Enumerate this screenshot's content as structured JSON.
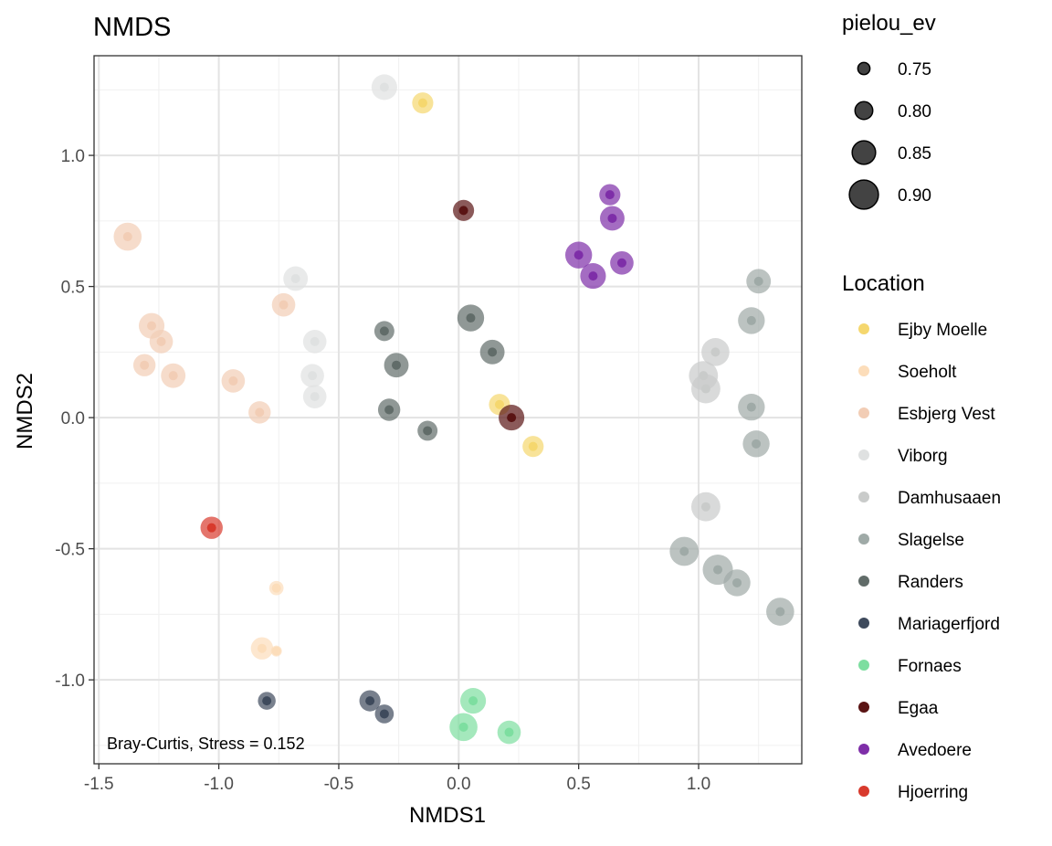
{
  "chart_data": {
    "type": "scatter",
    "title": "NMDS",
    "xlabel": "NMDS1",
    "ylabel": "NMDS2",
    "xlim": [
      -1.52,
      1.43
    ],
    "ylim": [
      -1.32,
      1.38
    ],
    "x_ticks": [
      -1.5,
      -1.0,
      -0.5,
      0.0,
      0.5,
      1.0
    ],
    "x_tick_labels": [
      "-1.5",
      "-1.0",
      "-0.5",
      "0.0",
      "0.5",
      "1.0"
    ],
    "y_ticks": [
      -1.0,
      -0.5,
      0.0,
      0.5,
      1.0
    ],
    "y_tick_labels": [
      "-1.0",
      "-0.5",
      "0.0",
      "0.5",
      "1.0"
    ],
    "grid": true,
    "annotation": "Bray-Curtis, Stress =  0.152",
    "size_legend": {
      "title": "pielou_ev",
      "entries": [
        {
          "label": "0.75",
          "value": 0.75
        },
        {
          "label": "0.80",
          "value": 0.8
        },
        {
          "label": "0.85",
          "value": 0.85
        },
        {
          "label": "0.90",
          "value": 0.9
        }
      ]
    },
    "color_legend": {
      "title": "Location",
      "placement": "right"
    },
    "series": [
      {
        "name": "Ejby Moelle",
        "color": "#F5D76E",
        "points": [
          [
            -0.15,
            1.2,
            0.83
          ],
          [
            0.17,
            0.05,
            0.83
          ],
          [
            0.31,
            -0.11,
            0.83
          ]
        ]
      },
      {
        "name": "Soeholt",
        "color": "#FCDDBA",
        "points": [
          [
            -0.76,
            -0.65,
            0.77
          ],
          [
            -0.82,
            -0.88,
            0.84
          ],
          [
            -0.76,
            -0.89,
            0.74
          ]
        ]
      },
      {
        "name": "Esbjerg Vest",
        "color": "#F2CDB5",
        "points": [
          [
            -1.38,
            0.69,
            0.89
          ],
          [
            -1.28,
            0.35,
            0.87
          ],
          [
            -1.24,
            0.29,
            0.85
          ],
          [
            -1.31,
            0.2,
            0.84
          ],
          [
            -1.19,
            0.16,
            0.86
          ],
          [
            -0.94,
            0.14,
            0.85
          ],
          [
            -0.73,
            0.43,
            0.85
          ],
          [
            -0.83,
            0.02,
            0.84
          ]
        ]
      },
      {
        "name": "Viborg",
        "color": "#DFE1E1",
        "points": [
          [
            -0.31,
            1.26,
            0.87
          ],
          [
            -0.68,
            0.53,
            0.86
          ],
          [
            -0.6,
            0.29,
            0.85
          ],
          [
            -0.61,
            0.16,
            0.85
          ],
          [
            -0.6,
            0.08,
            0.85
          ]
        ]
      },
      {
        "name": "Damhusaaen",
        "color": "#C9CBCA",
        "points": [
          [
            1.07,
            0.25,
            0.89
          ],
          [
            1.02,
            0.16,
            0.9
          ],
          [
            1.03,
            0.11,
            0.9
          ],
          [
            1.03,
            -0.34,
            0.9
          ]
        ]
      },
      {
        "name": "Slagelse",
        "color": "#9FAAA7",
        "points": [
          [
            1.25,
            0.52,
            0.86
          ],
          [
            1.22,
            0.37,
            0.88
          ],
          [
            1.22,
            0.04,
            0.88
          ],
          [
            1.24,
            -0.1,
            0.88
          ],
          [
            0.94,
            -0.51,
            0.9
          ],
          [
            1.08,
            -0.58,
            0.91
          ],
          [
            1.16,
            -0.63,
            0.88
          ],
          [
            1.34,
            -0.74,
            0.89
          ]
        ]
      },
      {
        "name": "Randers",
        "color": "#616C69",
        "points": [
          [
            -0.31,
            0.33,
            0.82
          ],
          [
            -0.26,
            0.2,
            0.86
          ],
          [
            -0.29,
            0.03,
            0.84
          ],
          [
            -0.13,
            -0.05,
            0.82
          ],
          [
            0.05,
            0.38,
            0.88
          ],
          [
            0.14,
            0.25,
            0.86
          ]
        ]
      },
      {
        "name": "Mariagerfjord",
        "color": "#3E4A5C",
        "points": [
          [
            -0.8,
            -1.08,
            0.8
          ],
          [
            -0.37,
            -1.08,
            0.83
          ],
          [
            -0.31,
            -1.13,
            0.81
          ]
        ]
      },
      {
        "name": "Fornaes",
        "color": "#7DDEA0",
        "points": [
          [
            0.06,
            -1.08,
            0.87
          ],
          [
            0.02,
            -1.18,
            0.89
          ],
          [
            0.21,
            -1.2,
            0.85
          ]
        ]
      },
      {
        "name": "Egaa",
        "color": "#5A1414",
        "points": [
          [
            0.02,
            0.79,
            0.83
          ],
          [
            0.22,
            0.0,
            0.87
          ]
        ]
      },
      {
        "name": "Avedoere",
        "color": "#7E2EA8",
        "points": [
          [
            0.63,
            0.85,
            0.83
          ],
          [
            0.64,
            0.76,
            0.86
          ],
          [
            0.5,
            0.62,
            0.88
          ],
          [
            0.56,
            0.54,
            0.87
          ],
          [
            0.68,
            0.59,
            0.85
          ]
        ]
      },
      {
        "name": "Hjoerring",
        "color": "#D83A2D",
        "points": [
          [
            -1.03,
            -0.42,
            0.84
          ]
        ]
      }
    ]
  }
}
